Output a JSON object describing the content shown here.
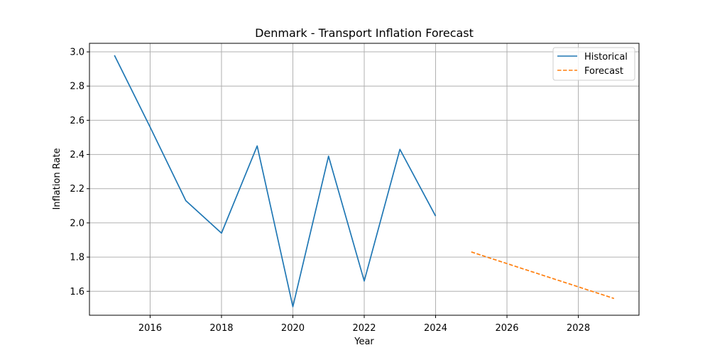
{
  "chart_data": {
    "type": "line",
    "title": "Denmark - Transport Inflation Forecast",
    "xlabel": "Year",
    "ylabel": "Inflation Rate",
    "xlim": [
      2014.3,
      2029.7
    ],
    "ylim": [
      1.46,
      3.05
    ],
    "x_ticks": [
      2016,
      2018,
      2020,
      2022,
      2024,
      2026,
      2028
    ],
    "y_ticks": [
      1.6,
      1.8,
      2.0,
      2.2,
      2.4,
      2.6,
      2.8,
      3.0
    ],
    "x_tick_labels": [
      "2016",
      "2018",
      "2020",
      "2022",
      "2024",
      "2026",
      "2028"
    ],
    "y_tick_labels": [
      "1.6",
      "1.8",
      "2.0",
      "2.2",
      "2.4",
      "2.6",
      "2.8",
      "3.0"
    ],
    "grid": true,
    "legend_position": "top-right",
    "series": [
      {
        "name": "Historical",
        "color": "#1f77b4",
        "style": "solid",
        "x": [
          2015,
          2016,
          2017,
          2018,
          2019,
          2020,
          2021,
          2022,
          2023,
          2024
        ],
        "values": [
          2.98,
          2.56,
          2.13,
          1.94,
          2.45,
          1.51,
          2.39,
          1.66,
          2.43,
          2.04
        ]
      },
      {
        "name": "Forecast",
        "color": "#ff7f0e",
        "style": "dashed",
        "x": [
          2025,
          2026,
          2027,
          2028,
          2029
        ],
        "values": [
          1.83,
          1.762,
          1.694,
          1.626,
          1.558
        ]
      }
    ]
  }
}
